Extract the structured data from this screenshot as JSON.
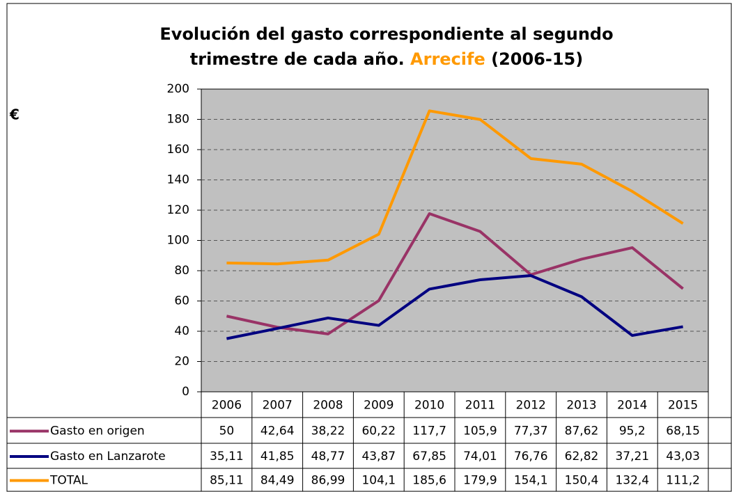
{
  "chart_data": {
    "type": "line",
    "title": {
      "line1": "Evolución del gasto correspondiente al segundo",
      "line2": "trimestre de cada año.",
      "highlight": "Arrecife",
      "suffix": "(2006-15)"
    },
    "y_label": "€",
    "categories": [
      "2006",
      "2007",
      "2008",
      "2009",
      "2010",
      "2011",
      "2012",
      "2013",
      "2014",
      "2015"
    ],
    "series": [
      {
        "name": "Gasto en origen",
        "color": "#993366",
        "values": [
          50,
          42.64,
          38.22,
          60.22,
          117.7,
          105.9,
          77.37,
          87.62,
          95.2,
          68.15
        ],
        "value_labels": [
          "50",
          "42,64",
          "38,22",
          "60,22",
          "117,7",
          "105,9",
          "77,37",
          "87,62",
          "95,2",
          "68,15"
        ]
      },
      {
        "name": "Gasto en Lanzarote",
        "color": "#000080",
        "values": [
          35.11,
          41.85,
          48.77,
          43.87,
          67.85,
          74.01,
          76.76,
          62.82,
          37.21,
          43.03
        ],
        "value_labels": [
          "35,11",
          "41,85",
          "48,77",
          "43,87",
          "67,85",
          "74,01",
          "76,76",
          "62,82",
          "37,21",
          "43,03"
        ]
      },
      {
        "name": "TOTAL",
        "color": "#ff9900",
        "values": [
          85.11,
          84.49,
          86.99,
          104.1,
          185.6,
          179.9,
          154.1,
          150.4,
          132.4,
          111.2
        ],
        "value_labels": [
          "85,11",
          "84,49",
          "86,99",
          "104,1",
          "185,6",
          "179,9",
          "154,1",
          "150,4",
          "132,4",
          "111,2"
        ]
      }
    ],
    "ylim": [
      0,
      200
    ],
    "yticks": [
      0,
      20,
      40,
      60,
      80,
      100,
      120,
      140,
      160,
      180,
      200
    ],
    "grid": true,
    "plot_background": "#c0c0c0"
  }
}
